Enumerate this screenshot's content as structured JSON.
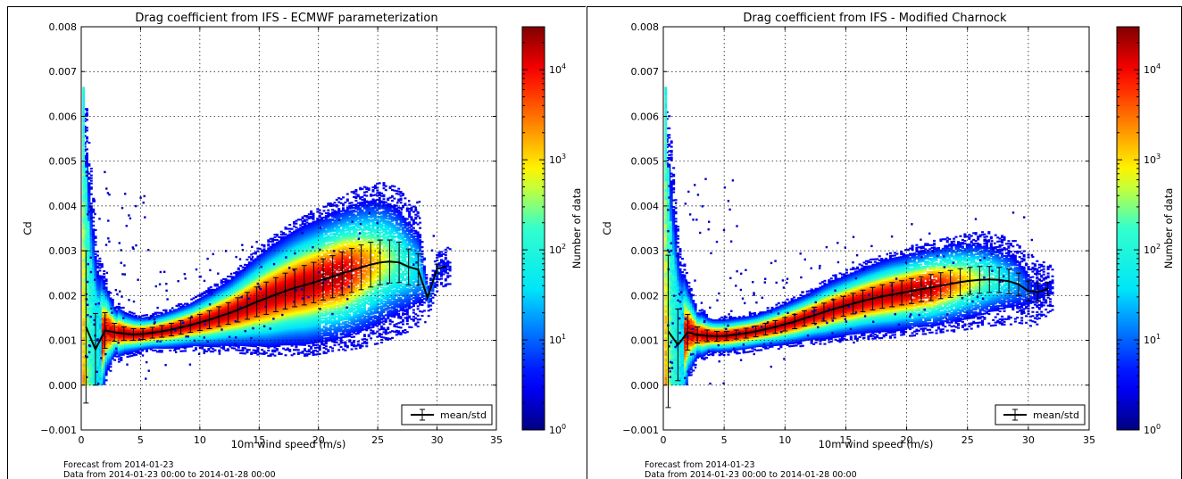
{
  "chart_data": [
    {
      "type": "heatmap",
      "title": "Drag coefficient from IFS - ECMWF parameterization",
      "xlabel": "10m wind speed (m/s)",
      "ylabel": "Cd",
      "xlim": [
        0,
        35
      ],
      "ylim": [
        -0.001,
        0.008
      ],
      "xticks": [
        0,
        5,
        10,
        15,
        20,
        25,
        30,
        35
      ],
      "yticks": [
        -0.001,
        0.0,
        0.001,
        0.002,
        0.003,
        0.004,
        0.005,
        0.006,
        0.007,
        0.008
      ],
      "xtick_labels": [
        "0",
        "5",
        "10",
        "15",
        "20",
        "25",
        "30",
        "35"
      ],
      "ytick_labels": [
        "−0.001",
        "0.000",
        "0.001",
        "0.002",
        "0.003",
        "0.004",
        "0.005",
        "0.006",
        "0.007",
        "0.008"
      ],
      "grid": true,
      "colorbar": {
        "label": "Number of data",
        "scale": "log",
        "range": [
          1,
          30000
        ],
        "ticks": [
          1,
          10,
          100,
          1000,
          10000
        ],
        "tick_bases": [
          "10",
          "10",
          "10",
          "10",
          "10"
        ],
        "tick_exponents": [
          "0",
          "1",
          "2",
          "3",
          "4"
        ]
      },
      "legend": {
        "entries": [
          "mean/std"
        ],
        "placement": "lower-right"
      },
      "series": [
        {
          "name": "mean/std",
          "x": [
            0.4,
            1.2,
            2.0,
            2.8,
            3.6,
            4.4,
            5.2,
            6.0,
            6.8,
            7.6,
            8.4,
            9.2,
            10.0,
            10.8,
            11.6,
            12.4,
            13.2,
            14.0,
            14.8,
            15.6,
            16.4,
            17.2,
            18.0,
            18.8,
            19.6,
            20.4,
            21.2,
            22.0,
            22.8,
            23.6,
            24.4,
            25.2,
            26.0,
            26.8,
            27.6,
            28.4,
            29.2,
            30.0,
            30.8
          ],
          "mean": [
            0.0013,
            0.0008,
            0.00122,
            0.00118,
            0.00115,
            0.00113,
            0.00114,
            0.00117,
            0.0012,
            0.00124,
            0.00129,
            0.00134,
            0.0014,
            0.00146,
            0.00153,
            0.0016,
            0.00168,
            0.00177,
            0.00186,
            0.00194,
            0.00202,
            0.0021,
            0.00217,
            0.00223,
            0.00229,
            0.00236,
            0.00242,
            0.00249,
            0.00256,
            0.00263,
            0.00269,
            0.00274,
            0.00276,
            0.00274,
            0.00264,
            0.00258,
            0.00195,
            0.0026,
            0.00265
          ],
          "std": [
            0.0017,
            0.0008,
            0.0004,
            0.0002,
            0.00015,
            0.00013,
            0.00012,
            0.00012,
            0.00013,
            0.00014,
            0.00015,
            0.00016,
            0.00018,
            0.0002,
            0.00022,
            0.00024,
            0.00027,
            0.0003,
            0.00033,
            0.00036,
            0.00038,
            0.0004,
            0.00042,
            0.00044,
            0.00045,
            0.00046,
            0.00047,
            0.00048,
            0.00049,
            0.0005,
            0.0005,
            0.0005,
            0.00048,
            0.00045,
            0.0004,
            0.00035,
            0.0,
            0.0001,
            0.0
          ]
        }
      ]
    },
    {
      "type": "heatmap",
      "title": "Drag coefficient from IFS - Modified Charnock",
      "xlabel": "10m wind speed (m/s)",
      "ylabel": "Cd",
      "xlim": [
        0,
        35
      ],
      "ylim": [
        -0.001,
        0.008
      ],
      "xticks": [
        0,
        5,
        10,
        15,
        20,
        25,
        30,
        35
      ],
      "yticks": [
        -0.001,
        0.0,
        0.001,
        0.002,
        0.003,
        0.004,
        0.005,
        0.006,
        0.007,
        0.008
      ],
      "xtick_labels": [
        "0",
        "5",
        "10",
        "15",
        "20",
        "25",
        "30",
        "35"
      ],
      "ytick_labels": [
        "−0.001",
        "0.000",
        "0.001",
        "0.002",
        "0.003",
        "0.004",
        "0.005",
        "0.006",
        "0.007",
        "0.008"
      ],
      "grid": true,
      "colorbar": {
        "label": "Number of data",
        "scale": "log",
        "range": [
          1,
          30000
        ],
        "ticks": [
          1,
          10,
          100,
          1000,
          10000
        ],
        "tick_bases": [
          "10",
          "10",
          "10",
          "10",
          "10"
        ],
        "tick_exponents": [
          "0",
          "1",
          "2",
          "3",
          "4"
        ]
      },
      "legend": {
        "entries": [
          "mean/std"
        ],
        "placement": "lower-right"
      },
      "series": [
        {
          "name": "mean/std",
          "x": [
            0.4,
            1.2,
            2.0,
            2.8,
            3.6,
            4.4,
            5.2,
            6.0,
            6.8,
            7.6,
            8.4,
            9.2,
            10.0,
            10.8,
            11.6,
            12.4,
            13.2,
            14.0,
            14.8,
            15.6,
            16.4,
            17.2,
            18.0,
            18.8,
            19.6,
            20.4,
            21.2,
            22.0,
            22.8,
            23.6,
            24.4,
            25.2,
            26.0,
            26.8,
            27.6,
            28.4,
            29.2,
            30.0,
            30.8,
            31.6
          ],
          "mean": [
            0.0012,
            0.0009,
            0.00118,
            0.00112,
            0.0011,
            0.00109,
            0.0011,
            0.00113,
            0.00116,
            0.0012,
            0.00125,
            0.0013,
            0.00136,
            0.00142,
            0.00149,
            0.00156,
            0.00163,
            0.0017,
            0.00176,
            0.00182,
            0.00188,
            0.00193,
            0.00198,
            0.00202,
            0.00206,
            0.0021,
            0.00214,
            0.00218,
            0.00222,
            0.00226,
            0.0023,
            0.00233,
            0.00235,
            0.00236,
            0.00235,
            0.00232,
            0.00225,
            0.0021,
            0.00208,
            0.00215
          ],
          "std": [
            0.0017,
            0.0008,
            0.0004,
            0.00018,
            0.00013,
            0.00011,
            0.0001,
            0.0001,
            0.00011,
            0.00012,
            0.00013,
            0.00014,
            0.00015,
            0.00016,
            0.00017,
            0.00018,
            0.0002,
            0.00021,
            0.00022,
            0.00023,
            0.00024,
            0.00025,
            0.00026,
            0.00027,
            0.00027,
            0.00028,
            0.00028,
            0.00029,
            0.00029,
            0.0003,
            0.0003,
            0.0003,
            0.0003,
            0.00029,
            0.00028,
            0.00027,
            0.00025,
            0.00022,
            0.0002,
            0.00015
          ]
        }
      ]
    }
  ],
  "footer": [
    {
      "line1": "Forecast from 2014-01-23",
      "line2": "Data from 2014-01-23 00:00 to 2014-01-28 00:00"
    },
    {
      "line1": "Forecast from 2014-01-23",
      "line2": "Data from 2014-01-23 00:00 to 2014-01-28 00:00"
    }
  ]
}
